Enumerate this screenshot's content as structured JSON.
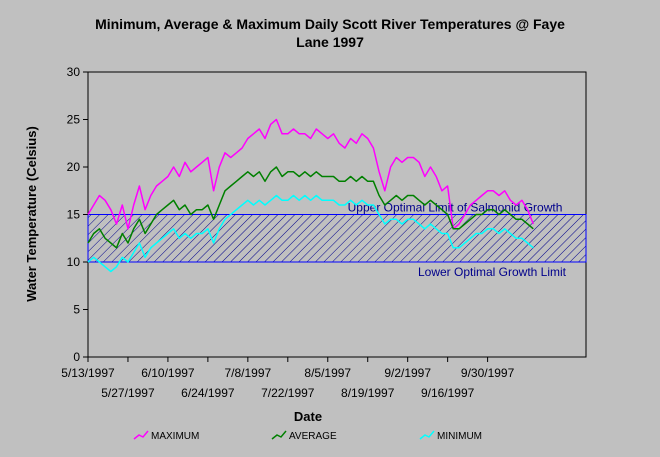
{
  "chart_data": {
    "type": "line",
    "title_line1": "Minimum, Average & Maximum Daily Scott River Temperatures @ Faye",
    "title_line2": "Lane 1997",
    "xlabel": "Date",
    "ylabel": "Water Temperature (Celsius)",
    "ylim": [
      0,
      30
    ],
    "yticks": [
      0,
      5,
      10,
      15,
      20,
      25,
      30
    ],
    "xlim_days": [
      0,
      175
    ],
    "xticks_upper": [
      {
        "day": 0,
        "label": "5/13/1997"
      },
      {
        "day": 28,
        "label": "6/10/1997"
      },
      {
        "day": 56,
        "label": "7/8/1997"
      },
      {
        "day": 84,
        "label": "8/5/1997"
      },
      {
        "day": 112,
        "label": "9/2/1997"
      },
      {
        "day": 140,
        "label": "9/30/1997"
      }
    ],
    "xticks_lower": [
      {
        "day": 14,
        "label": "5/27/1997"
      },
      {
        "day": 42,
        "label": "6/24/1997"
      },
      {
        "day": 70,
        "label": "7/22/1997"
      },
      {
        "day": 98,
        "label": "8/19/1997"
      },
      {
        "day": 126,
        "label": "9/16/1997"
      }
    ],
    "band": {
      "lower": 10,
      "upper": 15,
      "upper_label": "Upper Optimal Limit of Salmonid Growth",
      "lower_label": "Lower Optimal Growth Limit"
    },
    "grid": false,
    "legend_position": "bottom",
    "series": [
      {
        "name": "MAXIMUM",
        "color": "#ff00ff",
        "x": [
          0,
          2,
          4,
          6,
          8,
          10,
          12,
          14,
          16,
          18,
          20,
          22,
          24,
          26,
          28,
          30,
          32,
          34,
          36,
          38,
          40,
          42,
          44,
          46,
          48,
          50,
          52,
          54,
          56,
          58,
          60,
          62,
          64,
          66,
          68,
          70,
          72,
          74,
          76,
          78,
          80,
          82,
          84,
          86,
          88,
          90,
          92,
          94,
          96,
          98,
          100,
          102,
          104,
          106,
          108,
          110,
          112,
          114,
          116,
          118,
          120,
          122,
          124,
          126,
          128,
          130,
          132,
          134,
          136,
          138,
          140,
          142,
          144,
          146,
          148,
          150,
          152,
          154,
          156
        ],
        "values": [
          15.0,
          16.0,
          17.0,
          16.5,
          15.5,
          14.0,
          16.0,
          13.5,
          16.0,
          18.0,
          15.5,
          17.0,
          18.0,
          18.5,
          19.0,
          20.0,
          19.0,
          20.5,
          19.5,
          20.0,
          20.5,
          21.0,
          17.5,
          20.0,
          21.5,
          21.0,
          21.5,
          22.0,
          23.0,
          23.5,
          24.0,
          23.0,
          24.5,
          25.0,
          23.5,
          23.5,
          24.0,
          23.5,
          23.5,
          23.0,
          24.0,
          23.5,
          23.0,
          23.5,
          22.5,
          22.0,
          23.0,
          22.5,
          23.5,
          23.0,
          22.0,
          19.5,
          17.5,
          20.0,
          21.0,
          20.5,
          21.0,
          21.0,
          20.5,
          19.0,
          20.0,
          19.0,
          17.5,
          18.0,
          13.5,
          14.0,
          15.0,
          16.0,
          16.5,
          17.0,
          17.5,
          17.5,
          17.0,
          17.5,
          16.5,
          16.0,
          16.5,
          15.5,
          14.0
        ]
      },
      {
        "name": "AVERAGE",
        "color": "#008000",
        "x": [
          0,
          2,
          4,
          6,
          8,
          10,
          12,
          14,
          16,
          18,
          20,
          22,
          24,
          26,
          28,
          30,
          32,
          34,
          36,
          38,
          40,
          42,
          44,
          46,
          48,
          50,
          52,
          54,
          56,
          58,
          60,
          62,
          64,
          66,
          68,
          70,
          72,
          74,
          76,
          78,
          80,
          82,
          84,
          86,
          88,
          90,
          92,
          94,
          96,
          98,
          100,
          102,
          104,
          106,
          108,
          110,
          112,
          114,
          116,
          118,
          120,
          122,
          124,
          126,
          128,
          130,
          132,
          134,
          136,
          138,
          140,
          142,
          144,
          146,
          148,
          150,
          152,
          154,
          156
        ],
        "values": [
          12.0,
          13.0,
          13.5,
          12.5,
          12.0,
          11.5,
          13.0,
          12.0,
          13.5,
          14.5,
          13.0,
          14.0,
          15.0,
          15.5,
          16.0,
          16.5,
          15.5,
          16.0,
          15.0,
          15.5,
          15.5,
          16.0,
          14.5,
          16.0,
          17.5,
          18.0,
          18.5,
          19.0,
          19.5,
          19.0,
          19.5,
          18.5,
          19.5,
          20.0,
          19.0,
          19.5,
          19.5,
          19.0,
          19.5,
          19.0,
          19.5,
          19.0,
          19.0,
          19.0,
          18.5,
          18.5,
          19.0,
          18.5,
          19.0,
          18.5,
          18.5,
          17.0,
          16.0,
          16.5,
          17.0,
          16.5,
          17.0,
          17.0,
          16.5,
          16.0,
          16.5,
          16.0,
          15.5,
          15.0,
          13.5,
          13.5,
          14.0,
          14.5,
          15.0,
          15.0,
          15.5,
          15.5,
          15.0,
          15.5,
          15.0,
          14.5,
          14.5,
          14.0,
          13.5
        ]
      },
      {
        "name": "MINIMUM",
        "color": "#00ffff",
        "x": [
          0,
          2,
          4,
          6,
          8,
          10,
          12,
          14,
          16,
          18,
          20,
          22,
          24,
          26,
          28,
          30,
          32,
          34,
          36,
          38,
          40,
          42,
          44,
          46,
          48,
          50,
          52,
          54,
          56,
          58,
          60,
          62,
          64,
          66,
          68,
          70,
          72,
          74,
          76,
          78,
          80,
          82,
          84,
          86,
          88,
          90,
          92,
          94,
          96,
          98,
          100,
          102,
          104,
          106,
          108,
          110,
          112,
          114,
          116,
          118,
          120,
          122,
          124,
          126,
          128,
          130,
          132,
          134,
          136,
          138,
          140,
          142,
          144,
          146,
          148,
          150,
          152,
          154,
          156
        ],
        "values": [
          10.0,
          10.5,
          10.0,
          9.5,
          9.0,
          9.5,
          10.5,
          10.0,
          11.0,
          12.0,
          10.5,
          11.5,
          12.0,
          12.5,
          13.0,
          13.5,
          12.5,
          13.0,
          12.5,
          13.0,
          13.0,
          13.5,
          12.0,
          13.5,
          14.5,
          15.0,
          15.5,
          16.0,
          16.5,
          16.0,
          16.5,
          16.0,
          16.5,
          17.0,
          16.5,
          16.5,
          17.0,
          16.5,
          17.0,
          16.5,
          17.0,
          16.5,
          16.5,
          16.5,
          16.0,
          16.0,
          16.5,
          16.0,
          16.5,
          16.0,
          16.0,
          15.0,
          14.0,
          14.5,
          14.5,
          14.0,
          14.5,
          14.5,
          14.0,
          13.5,
          14.0,
          13.5,
          13.0,
          13.0,
          11.5,
          11.5,
          12.0,
          12.5,
          13.0,
          13.0,
          13.5,
          13.5,
          13.0,
          13.5,
          13.0,
          12.5,
          12.5,
          12.0,
          11.5
        ]
      }
    ]
  }
}
